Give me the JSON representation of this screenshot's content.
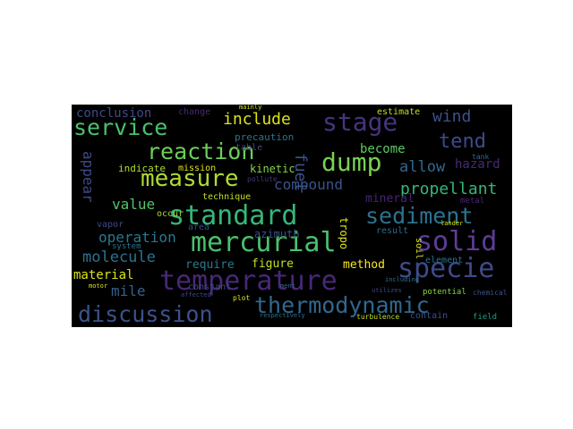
{
  "words": [
    {
      "text": "standard",
      "color": "#35b779"
    },
    {
      "text": "mercurial",
      "color": "#4ac16d"
    },
    {
      "text": "solid",
      "color": "#5e3c99"
    },
    {
      "text": "temperature",
      "color": "#482878"
    },
    {
      "text": "specie",
      "color": "#3e4a89"
    },
    {
      "text": "thermodynamic",
      "color": "#31688e"
    },
    {
      "text": "discussion",
      "color": "#3b528b"
    },
    {
      "text": "sediment",
      "color": "#2c728e"
    },
    {
      "text": "reaction",
      "color": "#6ece58"
    },
    {
      "text": "service",
      "color": "#4ac16d"
    },
    {
      "text": "stage",
      "color": "#46337e"
    },
    {
      "text": "dump",
      "color": "#7ad151"
    },
    {
      "text": "measure",
      "color": "#addc30"
    },
    {
      "text": "tend",
      "color": "#3e4a89"
    },
    {
      "text": "propellant",
      "color": "#35b779"
    },
    {
      "text": "operation",
      "color": "#2a788e"
    },
    {
      "text": "compound",
      "color": "#3b528b"
    },
    {
      "text": "allow",
      "color": "#31688e"
    },
    {
      "text": "molecule",
      "color": "#2c728e"
    },
    {
      "text": "wind",
      "color": "#3b528b"
    },
    {
      "text": "include",
      "color": "#dde318"
    },
    {
      "text": "value",
      "color": "#52c569"
    },
    {
      "text": "appear",
      "color": "#3e4a89"
    },
    {
      "text": "fuel",
      "color": "#3b528b"
    },
    {
      "text": "mile",
      "color": "#35608d"
    },
    {
      "text": "material",
      "color": "#dde318"
    },
    {
      "text": "conclusion",
      "color": "#3e4a89"
    },
    {
      "text": "method",
      "color": "#fde725"
    },
    {
      "text": "become",
      "color": "#5ec962"
    },
    {
      "text": "figure",
      "color": "#c2df23"
    },
    {
      "text": "require",
      "color": "#2a788e"
    },
    {
      "text": "hazard",
      "color": "#482878"
    },
    {
      "text": "mineral",
      "color": "#482475"
    },
    {
      "text": "tropo",
      "color": "#dde318"
    },
    {
      "text": "azimuth",
      "color": "#3b528b"
    },
    {
      "text": "indicate",
      "color": "#addc30"
    },
    {
      "text": "kinetic",
      "color": "#86d549"
    },
    {
      "text": "precaution",
      "color": "#2c728e"
    },
    {
      "text": "mission",
      "color": "#dde318"
    },
    {
      "text": "estimate",
      "color": "#c2df23"
    },
    {
      "text": "technique",
      "color": "#c2df23"
    },
    {
      "text": "occur",
      "color": "#a8db34"
    },
    {
      "text": "area",
      "color": "#3e4a89"
    },
    {
      "text": "result",
      "color": "#31688e"
    },
    {
      "text": "element",
      "color": "#2c728e"
    },
    {
      "text": "soil",
      "color": "#dde318"
    },
    {
      "text": "vapor",
      "color": "#3e4a89"
    },
    {
      "text": "system",
      "color": "#2c728e"
    },
    {
      "text": "constant",
      "color": "#3e4a89"
    },
    {
      "text": "table",
      "color": "#3e4a89"
    },
    {
      "text": "change",
      "color": "#482878"
    },
    {
      "text": "potential",
      "color": "#86d549"
    },
    {
      "text": "contain",
      "color": "#3b528b"
    },
    {
      "text": "field",
      "color": "#1f9e89"
    },
    {
      "text": "chemical",
      "color": "#3b528b"
    },
    {
      "text": "tank",
      "color": "#31688e"
    },
    {
      "text": "metal",
      "color": "#482878"
    },
    {
      "text": "turbulence",
      "color": "#c2df23"
    },
    {
      "text": "plot",
      "color": "#dde318"
    },
    {
      "text": "affected",
      "color": "#3e4a89"
    },
    {
      "text": "motor",
      "color": "#dde318"
    },
    {
      "text": "including",
      "color": "#2c728e"
    },
    {
      "text": "pollute",
      "color": "#46337e"
    },
    {
      "text": "ment",
      "color": "#31688e"
    },
    {
      "text": "mainly",
      "color": "#dde318"
    },
    {
      "text": "utilizes",
      "color": "#3e4a89"
    },
    {
      "text": "lander",
      "color": "#dde318"
    },
    {
      "text": "respectively",
      "color": "#2c728e"
    }
  ]
}
